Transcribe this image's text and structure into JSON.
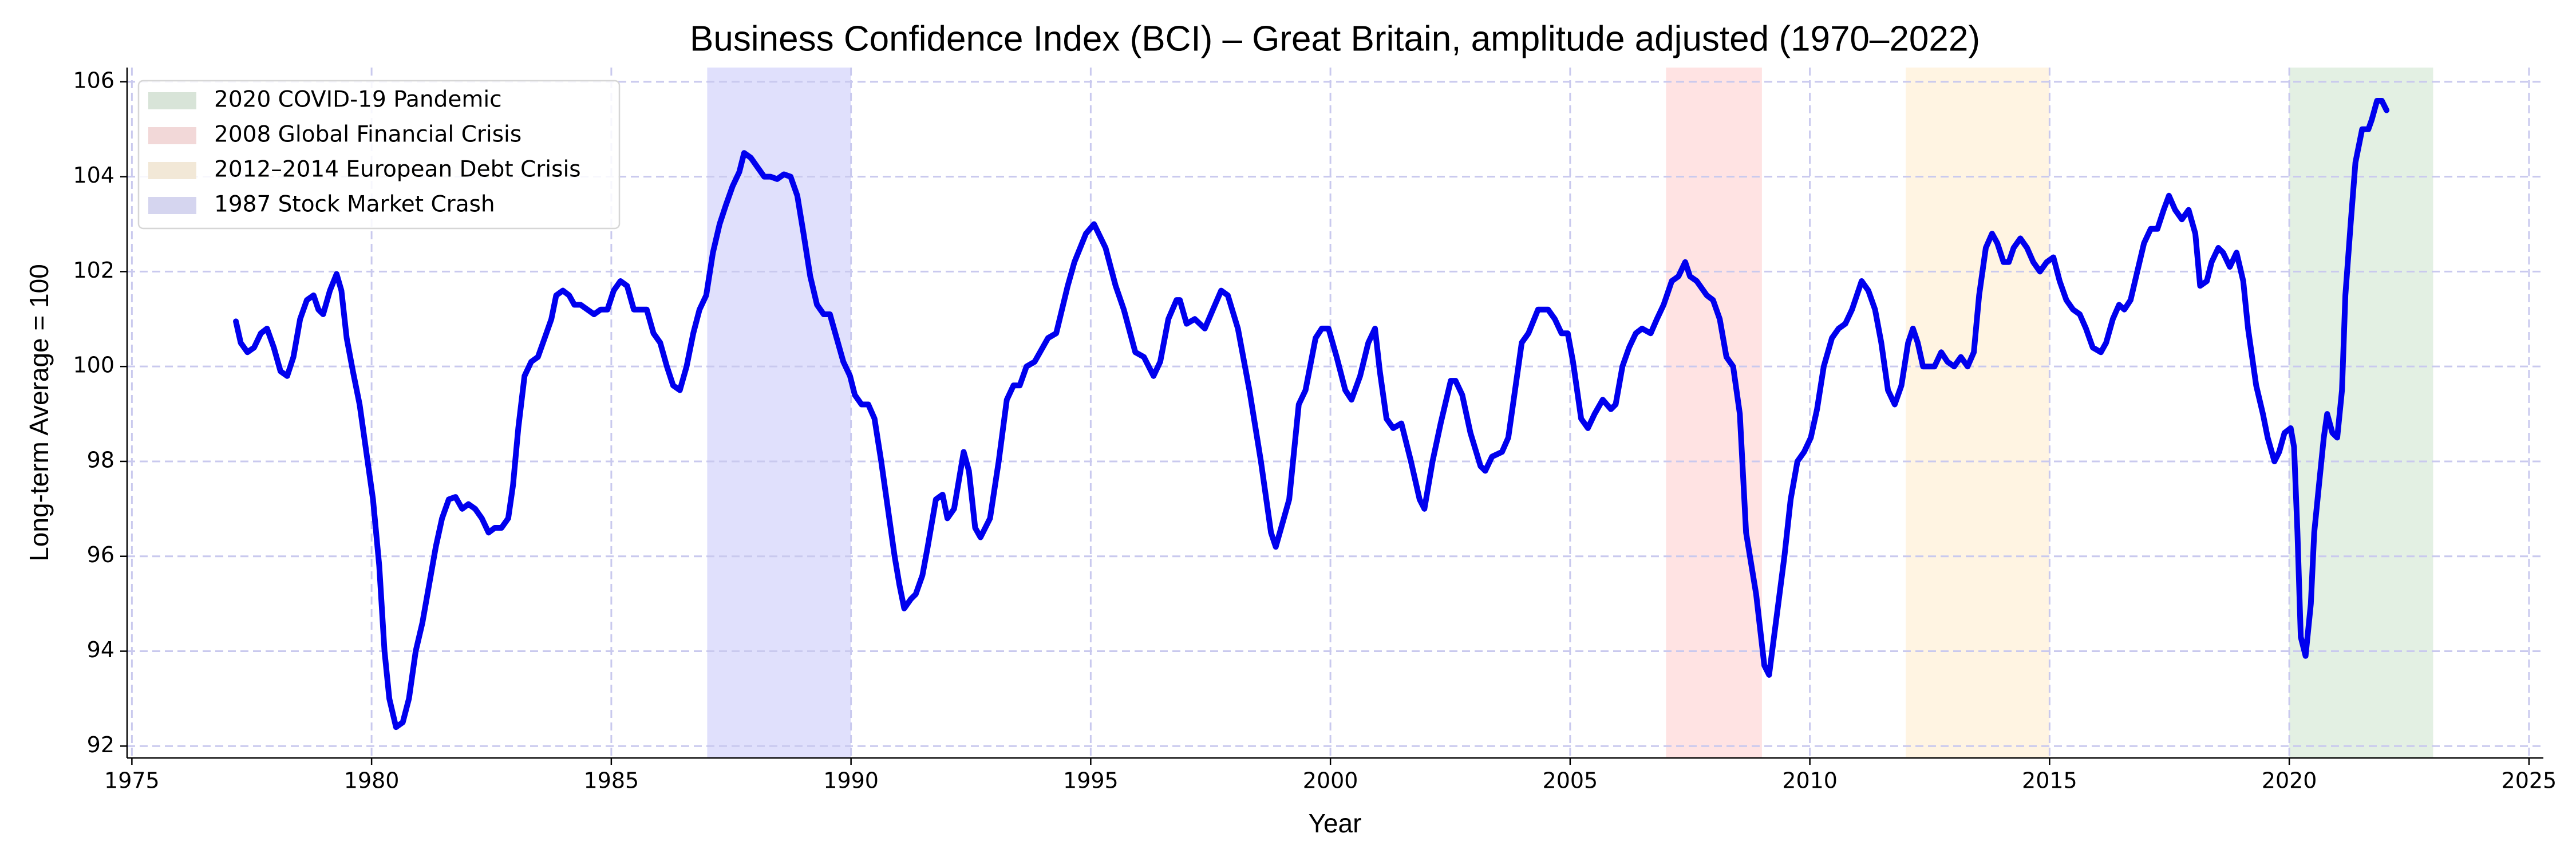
{
  "chart_data": {
    "type": "line",
    "title": "Business Confidence Index (BCI) – Great Britain, amplitude adjusted (1970–2022)",
    "xlabel": "Year",
    "ylabel": "Long-term Average = 100",
    "color": "#0000ee",
    "grid": true,
    "legend_position": "upper left",
    "xlim": [
      1974.9,
      2025.3
    ],
    "ylim": [
      91.75,
      106.3
    ],
    "xticks": [
      1975,
      1980,
      1985,
      1990,
      1995,
      2000,
      2005,
      2010,
      2015,
      2020,
      2025
    ],
    "yticks": [
      92,
      94,
      96,
      98,
      100,
      102,
      104,
      106
    ],
    "spans": [
      {
        "name": "2020 COVID-19 Pandemic",
        "start": 2020,
        "end": 2023,
        "color": "#e3f0e3"
      },
      {
        "name": "2008 Global Financial Crisis",
        "start": 2007,
        "end": 2009,
        "color": "#ffe3e3"
      },
      {
        "name": "2012–2014 European Debt Crisis",
        "start": 2012,
        "end": 2015,
        "color": "#fff4e2"
      },
      {
        "name": "1987 Stock Market Crash",
        "start": 1987,
        "end": 1990,
        "color": "#e0e0fc"
      }
    ],
    "x": [
      1977.17,
      1977.27,
      1977.41,
      1977.55,
      1977.69,
      1977.82,
      1977.96,
      1978.1,
      1978.24,
      1978.37,
      1978.51,
      1978.65,
      1978.79,
      1978.89,
      1978.99,
      1979.13,
      1979.27,
      1979.37,
      1979.48,
      1979.61,
      1979.75,
      1979.89,
      1980.03,
      1980.16,
      1980.27,
      1980.37,
      1980.51,
      1980.65,
      1980.78,
      1980.92,
      1981.06,
      1981.2,
      1981.34,
      1981.47,
      1981.61,
      1981.75,
      1981.89,
      1982.02,
      1982.16,
      1982.3,
      1982.44,
      1982.57,
      1982.71,
      1982.85,
      1982.95,
      1983.06,
      1983.19,
      1983.33,
      1983.47,
      1983.61,
      1983.75,
      1983.85,
      1983.99,
      1984.12,
      1984.23,
      1984.36,
      1984.5,
      1984.64,
      1984.78,
      1984.92,
      1985.05,
      1985.19,
      1985.33,
      1985.47,
      1985.6,
      1985.74,
      1985.88,
      1986.02,
      1986.16,
      1986.29,
      1986.43,
      1986.57,
      1986.71,
      1986.84,
      1986.98,
      1987.12,
      1987.26,
      1987.39,
      1987.53,
      1987.67,
      1987.77,
      1987.91,
      1988.05,
      1988.19,
      1988.32,
      1988.46,
      1988.6,
      1988.74,
      1988.88,
      1989.01,
      1989.15,
      1989.29,
      1989.43,
      1989.56,
      1989.7,
      1989.84,
      1989.98,
      1990.08,
      1990.22,
      1990.36,
      1990.49,
      1990.63,
      1990.77,
      1990.91,
      1991.01,
      1991.11,
      1991.25,
      1991.35,
      1991.49,
      1991.6,
      1991.77,
      1991.91,
      1992.01,
      1992.15,
      1992.35,
      1992.46,
      1992.59,
      1992.7,
      1992.9,
      1993.08,
      1993.25,
      1993.39,
      1993.52,
      1993.66,
      1993.83,
      1994.11,
      1994.28,
      1994.52,
      1994.66,
      1994.9,
      1995.07,
      1995.31,
      1995.52,
      1995.69,
      1995.93,
      1996.11,
      1996.31,
      1996.45,
      1996.62,
      1996.79,
      1996.86,
      1997.0,
      1997.17,
      1997.38,
      1997.55,
      1997.72,
      1997.86,
      1998.07,
      1998.31,
      1998.55,
      1998.76,
      1998.86,
      1999.0,
      1999.14,
      1999.34,
      1999.48,
      1999.69,
      1999.82,
      1999.96,
      2000.13,
      2000.31,
      2000.44,
      2000.62,
      2000.79,
      2000.93,
      2001.03,
      2001.17,
      2001.31,
      2001.48,
      2001.68,
      2001.86,
      2001.96,
      2002.13,
      2002.3,
      2002.51,
      2002.61,
      2002.75,
      2002.92,
      2003.13,
      2003.23,
      2003.37,
      2003.58,
      2003.71,
      2003.85,
      2003.99,
      2004.13,
      2004.33,
      2004.54,
      2004.68,
      2004.82,
      2004.95,
      2005.06,
      2005.23,
      2005.37,
      2005.51,
      2005.68,
      2005.85,
      2005.95,
      2006.09,
      2006.23,
      2006.37,
      2006.5,
      2006.68,
      2006.81,
      2006.95,
      2007.12,
      2007.26,
      2007.4,
      2007.5,
      2007.64,
      2007.85,
      2007.98,
      2008.12,
      2008.26,
      2008.4,
      2008.54,
      2008.67,
      2008.88,
      2009.05,
      2009.15,
      2009.29,
      2009.47,
      2009.6,
      2009.74,
      2009.88,
      2010.02,
      2010.15,
      2010.29,
      2010.46,
      2010.6,
      2010.74,
      2010.88,
      2011.08,
      2011.22,
      2011.36,
      2011.49,
      2011.63,
      2011.77,
      2011.91,
      2012.05,
      2012.15,
      2012.25,
      2012.36,
      2012.53,
      2012.6,
      2012.74,
      2012.87,
      2013.01,
      2013.15,
      2013.29,
      2013.42,
      2013.53,
      2013.67,
      2013.8,
      2013.91,
      2014.04,
      2014.15,
      2014.25,
      2014.39,
      2014.53,
      2014.66,
      2014.8,
      2014.94,
      2015.08,
      2015.21,
      2015.35,
      2015.49,
      2015.63,
      2015.76,
      2015.9,
      2016.07,
      2016.18,
      2016.32,
      2016.45,
      2016.56,
      2016.69,
      2016.83,
      2016.97,
      2017.11,
      2017.25,
      2017.38,
      2017.49,
      2017.62,
      2017.76,
      2017.9,
      2018.04,
      2018.14,
      2018.28,
      2018.38,
      2018.52,
      2018.62,
      2018.76,
      2018.9,
      2019.04,
      2019.14,
      2019.31,
      2019.45,
      2019.55,
      2019.69,
      2019.79,
      2019.9,
      2020.03,
      2020.1,
      2020.17,
      2020.24,
      2020.34,
      2020.45,
      2020.52,
      2020.62,
      2020.72,
      2020.79,
      2020.9,
      2021.0,
      2021.1,
      2021.17,
      2021.28,
      2021.38,
      2021.52,
      2021.65,
      2021.72,
      2021.83,
      2021.93,
      2022.03
    ],
    "values": [
      100.95,
      100.5,
      100.3,
      100.4,
      100.7,
      100.8,
      100.4,
      99.9,
      99.8,
      100.2,
      101.0,
      101.4,
      101.5,
      101.2,
      101.1,
      101.6,
      101.95,
      101.6,
      100.6,
      99.9,
      99.2,
      98.2,
      97.2,
      95.8,
      94.0,
      93.0,
      92.4,
      92.5,
      93.0,
      94.0,
      94.6,
      95.4,
      96.2,
      96.8,
      97.2,
      97.25,
      97.0,
      97.1,
      97.0,
      96.8,
      96.5,
      96.6,
      96.6,
      96.8,
      97.5,
      98.7,
      99.8,
      100.1,
      100.2,
      100.6,
      101.0,
      101.5,
      101.6,
      101.5,
      101.3,
      101.3,
      101.2,
      101.1,
      101.2,
      101.2,
      101.6,
      101.8,
      101.7,
      101.2,
      101.2,
      101.2,
      100.7,
      100.5,
      100.0,
      99.6,
      99.5,
      100.0,
      100.7,
      101.2,
      101.5,
      102.4,
      103.0,
      103.4,
      103.8,
      104.1,
      104.5,
      104.4,
      104.2,
      104.0,
      104.0,
      103.95,
      104.05,
      104.0,
      103.6,
      102.8,
      101.9,
      101.3,
      101.1,
      101.1,
      100.6,
      100.1,
      99.8,
      99.4,
      99.2,
      99.2,
      98.9,
      98.0,
      97.0,
      96.0,
      95.4,
      94.9,
      95.1,
      95.2,
      95.6,
      96.2,
      97.2,
      97.3,
      96.8,
      97.0,
      98.2,
      97.8,
      96.6,
      96.4,
      96.8,
      98.0,
      99.3,
      99.6,
      99.6,
      100.0,
      100.1,
      100.6,
      100.7,
      101.7,
      102.2,
      102.8,
      103.0,
      102.5,
      101.7,
      101.2,
      100.3,
      100.2,
      99.8,
      100.1,
      101.0,
      101.4,
      101.4,
      100.9,
      101.0,
      100.8,
      101.2,
      101.6,
      101.5,
      100.8,
      99.5,
      98.0,
      96.5,
      96.2,
      96.7,
      97.2,
      99.2,
      99.5,
      100.6,
      100.8,
      100.8,
      100.2,
      99.5,
      99.3,
      99.8,
      100.5,
      100.8,
      99.9,
      98.9,
      98.7,
      98.8,
      98.0,
      97.2,
      97.0,
      98.0,
      98.8,
      99.7,
      99.7,
      99.4,
      98.6,
      97.9,
      97.8,
      98.1,
      98.2,
      98.5,
      99.5,
      100.5,
      100.7,
      101.2,
      101.2,
      101.0,
      100.7,
      100.7,
      100.1,
      98.9,
      98.7,
      99.0,
      99.3,
      99.1,
      99.2,
      100.0,
      100.4,
      100.7,
      100.8,
      100.7,
      101.0,
      101.3,
      101.8,
      101.9,
      102.2,
      101.9,
      101.8,
      101.5,
      101.4,
      101.0,
      100.2,
      100.0,
      99.0,
      96.5,
      95.2,
      93.7,
      93.5,
      94.6,
      96.0,
      97.2,
      98.0,
      98.2,
      98.5,
      99.1,
      100.0,
      100.6,
      100.8,
      100.9,
      101.2,
      101.8,
      101.6,
      101.2,
      100.5,
      99.5,
      99.2,
      99.6,
      100.5,
      100.8,
      100.5,
      100.0,
      100.0,
      100.0,
      100.3,
      100.1,
      100.0,
      100.2,
      100.0,
      100.3,
      101.5,
      102.5,
      102.8,
      102.6,
      102.2,
      102.2,
      102.5,
      102.7,
      102.5,
      102.2,
      102.0,
      102.2,
      102.3,
      101.8,
      101.4,
      101.2,
      101.1,
      100.8,
      100.4,
      100.3,
      100.5,
      101.0,
      101.3,
      101.2,
      101.4,
      102.0,
      102.6,
      102.9,
      102.9,
      103.3,
      103.6,
      103.3,
      103.1,
      103.3,
      102.8,
      101.7,
      101.8,
      102.2,
      102.5,
      102.4,
      102.1,
      102.4,
      101.8,
      100.8,
      99.6,
      99.0,
      98.5,
      98.0,
      98.2,
      98.6,
      98.7,
      98.3,
      96.5,
      94.3,
      93.9,
      95.0,
      96.5,
      97.5,
      98.5,
      99.0,
      98.6,
      98.5,
      99.5,
      101.5,
      103.0,
      104.3,
      105.0,
      105.0,
      105.2,
      105.6,
      105.6,
      105.4
    ]
  }
}
